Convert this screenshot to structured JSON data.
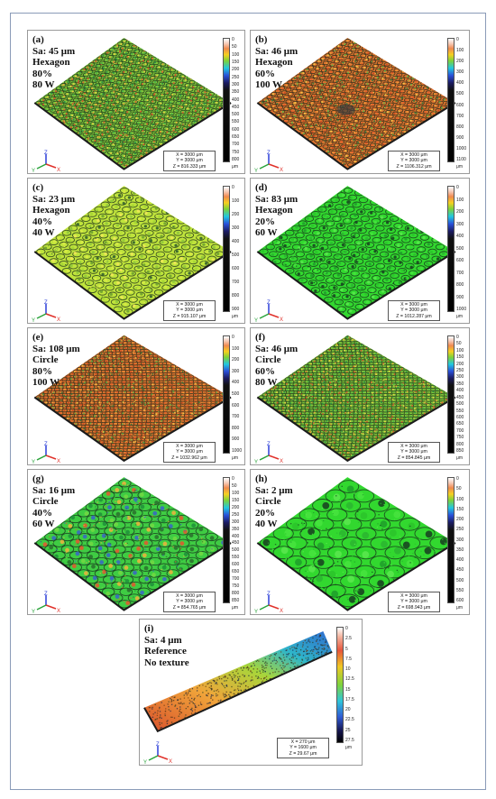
{
  "panels": [
    {
      "id": "a",
      "lines": [
        "(a)",
        "Sa: 45 μm",
        "Hexagon",
        "80%",
        "80 W"
      ],
      "ticks": [
        "0",
        "50",
        "100",
        "150",
        "200",
        "250",
        "300",
        "350",
        "400",
        "450",
        "500",
        "550",
        "600",
        "650",
        "700",
        "750",
        "800"
      ],
      "unit": "μm",
      "dims": [
        "X = 3000 μm",
        "Y = 3000 μm",
        "Z = 816.333 μm"
      ],
      "palette": "mixed",
      "pattern": "hex-dense"
    },
    {
      "id": "b",
      "lines": [
        "(b)",
        "Sa: 46 μm",
        "Hexagon",
        "60%",
        "100 W"
      ],
      "ticks": [
        "0",
        "100",
        "200",
        "300",
        "400",
        "500",
        "600",
        "700",
        "800",
        "900",
        "1000",
        "1100"
      ],
      "unit": "μm",
      "dims": [
        "X = 3000 μm",
        "Y = 3000 μm",
        "Z = 1106.312 μm"
      ],
      "palette": "orange",
      "pattern": "hex-dense"
    },
    {
      "id": "c",
      "lines": [
        "(c)",
        "Sa: 23 μm",
        "Hexagon",
        "40%",
        "40 W"
      ],
      "ticks": [
        "0",
        "100",
        "200",
        "300",
        "400",
        "500",
        "600",
        "700",
        "800",
        "900"
      ],
      "unit": "μm",
      "dims": [
        "X = 3000 μm",
        "Y = 3000 μm",
        "Z = 915.107 μm"
      ],
      "palette": "yellow",
      "pattern": "hex"
    },
    {
      "id": "d",
      "lines": [
        "(d)",
        "Sa: 83 μm",
        "Hexagon",
        "20%",
        "60 W"
      ],
      "ticks": [
        "0",
        "100",
        "200",
        "300",
        "400",
        "500",
        "600",
        "700",
        "800",
        "900",
        "1000"
      ],
      "unit": "μm",
      "dims": [
        "X = 3000 μm",
        "Y = 3000 μm",
        "Z = 1012.287 μm"
      ],
      "palette": "green",
      "pattern": "hex"
    },
    {
      "id": "e",
      "lines": [
        "(e)",
        "Sa: 108 μm",
        "Circle",
        "80%",
        "100 W"
      ],
      "ticks": [
        "0",
        "100",
        "200",
        "300",
        "400",
        "500",
        "600",
        "700",
        "800",
        "900",
        "1000"
      ],
      "unit": "μm",
      "dims": [
        "X = 3000 μm",
        "Y = 3000 μm",
        "Z = 1032.962 μm"
      ],
      "palette": "orange",
      "pattern": "grid-dense"
    },
    {
      "id": "f",
      "lines": [
        "(f)",
        "Sa: 46 μm",
        "Circle",
        "60%",
        "80 W"
      ],
      "ticks": [
        "0",
        "50",
        "100",
        "150",
        "200",
        "250",
        "300",
        "350",
        "400",
        "450",
        "500",
        "550",
        "600",
        "650",
        "700",
        "750",
        "800",
        "850"
      ],
      "unit": "μm",
      "dims": [
        "X = 3000 μm",
        "Y = 3000 μm",
        "Z = 854.845 μm"
      ],
      "palette": "mixed",
      "pattern": "grid-dense"
    },
    {
      "id": "g",
      "lines": [
        "(g)",
        "Sa: 16 μm",
        "Circle",
        "40%",
        "60 W"
      ],
      "ticks": [
        "0",
        "50",
        "100",
        "150",
        "200",
        "250",
        "300",
        "350",
        "400",
        "450",
        "500",
        "550",
        "600",
        "650",
        "700",
        "750",
        "800",
        "850"
      ],
      "unit": "μm",
      "dims": [
        "X = 3000 μm",
        "Y = 3000 μm",
        "Z = 854.765 μm"
      ],
      "palette": "green-mixed",
      "pattern": "circle"
    },
    {
      "id": "h",
      "lines": [
        "(h)",
        "Sa: 2 μm",
        "Circle",
        "20%",
        "40 W"
      ],
      "ticks": [
        "0",
        "50",
        "100",
        "150",
        "200",
        "250",
        "300",
        "350",
        "400",
        "450",
        "500",
        "550",
        "600"
      ],
      "unit": "μm",
      "dims": [
        "X = 3000 μm",
        "Y = 3000 μm",
        "Z = 698.943 μm"
      ],
      "palette": "green",
      "pattern": "circle-large"
    },
    {
      "id": "i",
      "lines": [
        "(i)",
        "Sa: 4 μm",
        "Reference",
        "No texture"
      ],
      "ticks": [
        "0",
        "2.5",
        "5",
        "7.5",
        "10",
        "12.5",
        "15",
        "17.5",
        "20",
        "22.5",
        "25",
        "27.5"
      ],
      "unit": "μm",
      "dims": [
        "X = 270 μm",
        "Y = 1600 μm",
        "Z = 29.67 μm"
      ],
      "palette": "ref",
      "pattern": "strip"
    }
  ],
  "axis_letters": {
    "x": "X",
    "y": "Y",
    "z": "Z"
  },
  "colors": {
    "border": "#8a9bb8",
    "panel_border": "#9a9a9a"
  }
}
